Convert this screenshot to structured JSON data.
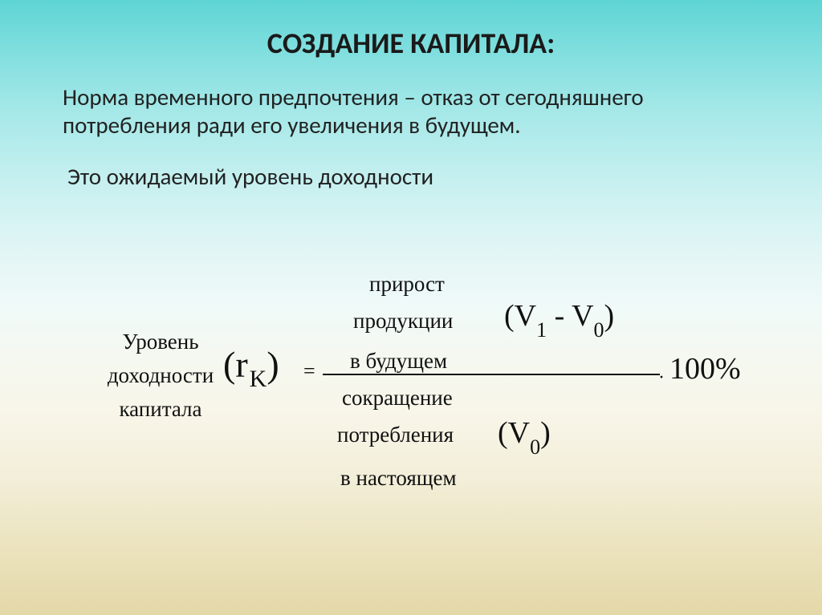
{
  "title": "СОЗДАНИЕ КАПИТАЛА:",
  "para1": "Норма временного предпочтения – отказ от сегодняшнего потребления ради его увеличения  в будущем.",
  "para2": "Это ожидаемый уровень доходности",
  "formula": {
    "left_label_l1": "Уровень",
    "left_label_l2": "доходности",
    "left_label_l3": "капитала",
    "symbol_open": "(",
    "symbol_r": "r",
    "symbol_sub": "K",
    "symbol_close": ")",
    "equals": "=",
    "numer_l1": "прирост",
    "numer_l2": "продукции",
    "numer_l3": "в будущем",
    "numer_expr": "(V",
    "numer_sub1": "1",
    "numer_mid": " - V",
    "numer_sub2": "0",
    "numer_close": ")",
    "denom_l1": "сокращение",
    "denom_l2": "потребления",
    "denom_l3": "в настоящем",
    "denom_expr": "(V",
    "denom_sub": "0",
    "denom_close": ")",
    "dot": "·",
    "mult": "100%"
  },
  "colors": {
    "text": "#1a1a1a",
    "bg_top": "#5ed4d4",
    "bg_bottom": "#e4d8a8"
  },
  "fontsize": {
    "title": 36,
    "body": 29,
    "formula_label": 27,
    "formula_symbol": 46,
    "formula_expr": 38
  }
}
